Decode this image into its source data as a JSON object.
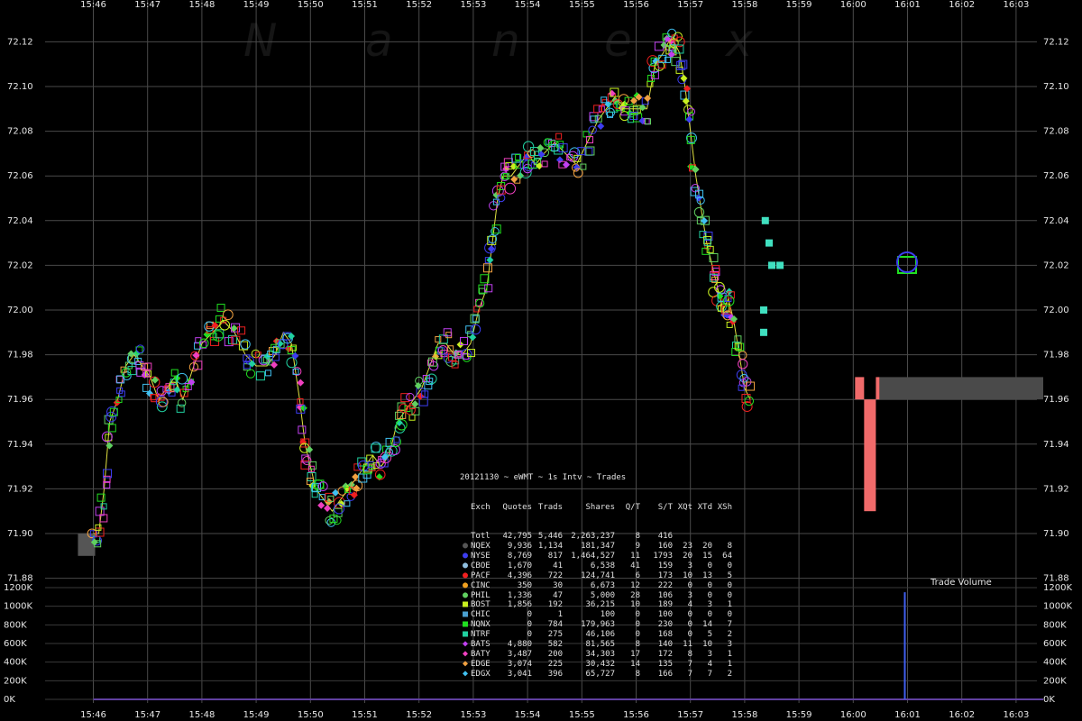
{
  "watermark": [
    "N",
    "a",
    "n",
    "e",
    "x"
  ],
  "chart_data": [
    {
      "type": "scatter",
      "x_ticks": [
        "15:46",
        "15:47",
        "15:48",
        "15:49",
        "15:50",
        "15:51",
        "15:52",
        "15:53",
        "15:54",
        "15:55",
        "15:56",
        "15:57",
        "15:58",
        "15:59",
        "16:00",
        "16:01",
        "16:02",
        "16:03"
      ],
      "y_ticks": [
        "71.88",
        "71.90",
        "71.92",
        "71.94",
        "71.96",
        "71.98",
        "72.00",
        "72.02",
        "72.04",
        "72.06",
        "72.08",
        "72.10",
        "72.12"
      ],
      "xlim": [
        "15:45:45",
        "16:03:30"
      ],
      "ylim": [
        71.88,
        72.13
      ],
      "grid": true,
      "price_path": [
        [
          0,
          71.9
        ],
        [
          0.1,
          71.9
        ],
        [
          0.2,
          71.92
        ],
        [
          0.3,
          71.95
        ],
        [
          0.45,
          71.96
        ],
        [
          0.6,
          71.975
        ],
        [
          0.75,
          71.98
        ],
        [
          0.9,
          71.975
        ],
        [
          1.05,
          71.97
        ],
        [
          1.2,
          71.96
        ],
        [
          1.35,
          71.965
        ],
        [
          1.5,
          71.97
        ],
        [
          1.65,
          71.96
        ],
        [
          1.85,
          71.975
        ],
        [
          2.0,
          71.985
        ],
        [
          2.2,
          71.99
        ],
        [
          2.4,
          71.995
        ],
        [
          2.6,
          71.99
        ],
        [
          2.8,
          71.98
        ],
        [
          3.0,
          71.975
        ],
        [
          3.2,
          71.975
        ],
        [
          3.35,
          71.98
        ],
        [
          3.5,
          71.99
        ],
        [
          3.65,
          71.985
        ],
        [
          3.8,
          71.96
        ],
        [
          3.9,
          71.94
        ],
        [
          4.0,
          71.93
        ],
        [
          4.1,
          71.92
        ],
        [
          4.25,
          71.915
        ],
        [
          4.4,
          71.91
        ],
        [
          4.55,
          71.915
        ],
        [
          4.7,
          71.92
        ],
        [
          4.85,
          71.925
        ],
        [
          5.0,
          71.93
        ],
        [
          5.15,
          71.935
        ],
        [
          5.3,
          71.93
        ],
        [
          5.45,
          71.935
        ],
        [
          5.6,
          71.95
        ],
        [
          5.75,
          71.955
        ],
        [
          5.9,
          71.96
        ],
        [
          6.05,
          71.965
        ],
        [
          6.2,
          71.975
        ],
        [
          6.35,
          71.985
        ],
        [
          6.5,
          71.985
        ],
        [
          6.65,
          71.98
        ],
        [
          6.8,
          71.98
        ],
        [
          6.95,
          71.985
        ],
        [
          7.1,
          72.0
        ],
        [
          7.25,
          72.01
        ],
        [
          7.35,
          72.03
        ],
        [
          7.45,
          72.05
        ],
        [
          7.55,
          72.06
        ],
        [
          7.7,
          72.06
        ],
        [
          7.85,
          72.065
        ],
        [
          8.0,
          72.07
        ],
        [
          8.15,
          72.065
        ],
        [
          8.3,
          72.07
        ],
        [
          8.5,
          72.075
        ],
        [
          8.7,
          72.07
        ],
        [
          8.9,
          72.065
        ],
        [
          9.1,
          72.075
        ],
        [
          9.3,
          72.085
        ],
        [
          9.45,
          72.09
        ],
        [
          9.6,
          72.095
        ],
        [
          9.75,
          72.09
        ],
        [
          9.9,
          72.09
        ],
        [
          10.05,
          72.09
        ],
        [
          10.2,
          72.09
        ],
        [
          10.35,
          72.11
        ],
        [
          10.5,
          72.115
        ],
        [
          10.6,
          72.12
        ],
        [
          10.7,
          72.12
        ],
        [
          10.8,
          72.115
        ],
        [
          10.9,
          72.1
        ],
        [
          11.0,
          72.08
        ],
        [
          11.1,
          72.06
        ],
        [
          11.2,
          72.045
        ],
        [
          11.3,
          72.03
        ],
        [
          11.4,
          72.02
        ],
        [
          11.5,
          72.01
        ],
        [
          11.6,
          72.0
        ],
        [
          11.7,
          72.005
        ],
        [
          11.8,
          71.995
        ],
        [
          11.9,
          71.98
        ],
        [
          12.0,
          71.965
        ],
        [
          12.1,
          71.96
        ]
      ],
      "late_trades": [
        [
          12.38,
          72.04
        ],
        [
          12.45,
          72.03
        ],
        [
          12.5,
          72.02
        ],
        [
          12.65,
          72.02
        ],
        [
          12.35,
          72.0
        ],
        [
          12.35,
          71.99
        ]
      ],
      "open_volume_bar": {
        "time_start": "15:45:43",
        "time_end": "15:46:02",
        "from": 71.89,
        "to": 71.9
      },
      "close_bars": [
        {
          "time_start": "16:00:02",
          "time_end": "16:00:12",
          "from": 71.96,
          "to": 71.97,
          "color": "#f06a6a"
        },
        {
          "time_start": "16:00:12",
          "time_end": "16:00:25",
          "from": 71.91,
          "to": 71.96,
          "color": "#f06a6a"
        },
        {
          "time_start": "16:00:25",
          "time_end": "16:00:29",
          "from": 71.96,
          "to": 71.97,
          "color": "#f06a6a"
        },
        {
          "time_start": "16:00:29",
          "time_end": "16:03:30",
          "from": 71.96,
          "to": 71.97,
          "color": "#4a4a4a"
        }
      ]
    },
    {
      "type": "bar",
      "title": "Trade Volume",
      "y_ticks": [
        "1200K",
        "1000K",
        "800K",
        "600K",
        "400K",
        "200K",
        "0K"
      ],
      "ylim": [
        0,
        1200000
      ],
      "spike": {
        "time": "16:00:57",
        "value": 1150000
      }
    }
  ],
  "stats": {
    "title": "20121130 ~ eWMT ~ 1s Intv ~ Trades",
    "headers": [
      "Exch",
      "Quotes",
      "Trads",
      "Shares",
      "Q/T",
      "S/T",
      "XQt",
      "XTd",
      "XSh"
    ],
    "rows": [
      {
        "marker": "",
        "color": "#ffffff",
        "cells": [
          "Totl",
          "42,795",
          "5,446",
          "2,263,237",
          "8",
          "416",
          "",
          "",
          ""
        ]
      },
      {
        "marker": "●",
        "color": "#555555",
        "cells": [
          "NQEX",
          "9,936",
          "1,134",
          "181,347",
          "9",
          "160",
          "23",
          "20",
          "8"
        ]
      },
      {
        "marker": "●",
        "color": "#3d3df0",
        "cells": [
          "NYSE",
          "8,769",
          "817",
          "1,464,527",
          "11",
          "1793",
          "20",
          "15",
          "64"
        ]
      },
      {
        "marker": "●",
        "color": "#8fbfe0",
        "cells": [
          "CBOE",
          "1,670",
          "41",
          "6,538",
          "41",
          "159",
          "3",
          "0",
          "0"
        ]
      },
      {
        "marker": "●",
        "color": "#f02020",
        "cells": [
          "PACF",
          "4,396",
          "722",
          "124,741",
          "6",
          "173",
          "10",
          "13",
          "5"
        ]
      },
      {
        "marker": "●",
        "color": "#f0a020",
        "cells": [
          "CINC",
          "350",
          "30",
          "6,673",
          "12",
          "222",
          "0",
          "0",
          "0"
        ]
      },
      {
        "marker": "●",
        "color": "#60d060",
        "cells": [
          "PHIL",
          "1,336",
          "47",
          "5,000",
          "28",
          "106",
          "3",
          "0",
          "0"
        ]
      },
      {
        "marker": "■",
        "color": "#c8f020",
        "cells": [
          "BOST",
          "1,856",
          "192",
          "36,215",
          "10",
          "189",
          "4",
          "3",
          "1"
        ]
      },
      {
        "marker": "■",
        "color": "#4aa0d0",
        "cells": [
          "CHIC",
          "0",
          "1",
          "100",
          "0",
          "100",
          "0",
          "0",
          "0"
        ]
      },
      {
        "marker": "■",
        "color": "#20e020",
        "cells": [
          "NQNX",
          "0",
          "784",
          "179,963",
          "0",
          "230",
          "0",
          "14",
          "7"
        ]
      },
      {
        "marker": "■",
        "color": "#20d0a0",
        "cells": [
          "NTRF",
          "0",
          "275",
          "46,106",
          "0",
          "168",
          "0",
          "5",
          "2"
        ]
      },
      {
        "marker": "◆",
        "color": "#c040f0",
        "cells": [
          "BATS",
          "4,880",
          "582",
          "81,565",
          "8",
          "140",
          "11",
          "10",
          "3"
        ]
      },
      {
        "marker": "◆",
        "color": "#f040c0",
        "cells": [
          "BATY",
          "3,487",
          "200",
          "34,303",
          "17",
          "172",
          "8",
          "3",
          "1"
        ]
      },
      {
        "marker": "◆",
        "color": "#f0a040",
        "cells": [
          "EDGE",
          "3,074",
          "225",
          "30,432",
          "14",
          "135",
          "7",
          "4",
          "1"
        ]
      },
      {
        "marker": "◆",
        "color": "#40c0f0",
        "cells": [
          "EDGX",
          "3,041",
          "396",
          "65,727",
          "8",
          "166",
          "7",
          "7",
          "2"
        ]
      }
    ]
  }
}
